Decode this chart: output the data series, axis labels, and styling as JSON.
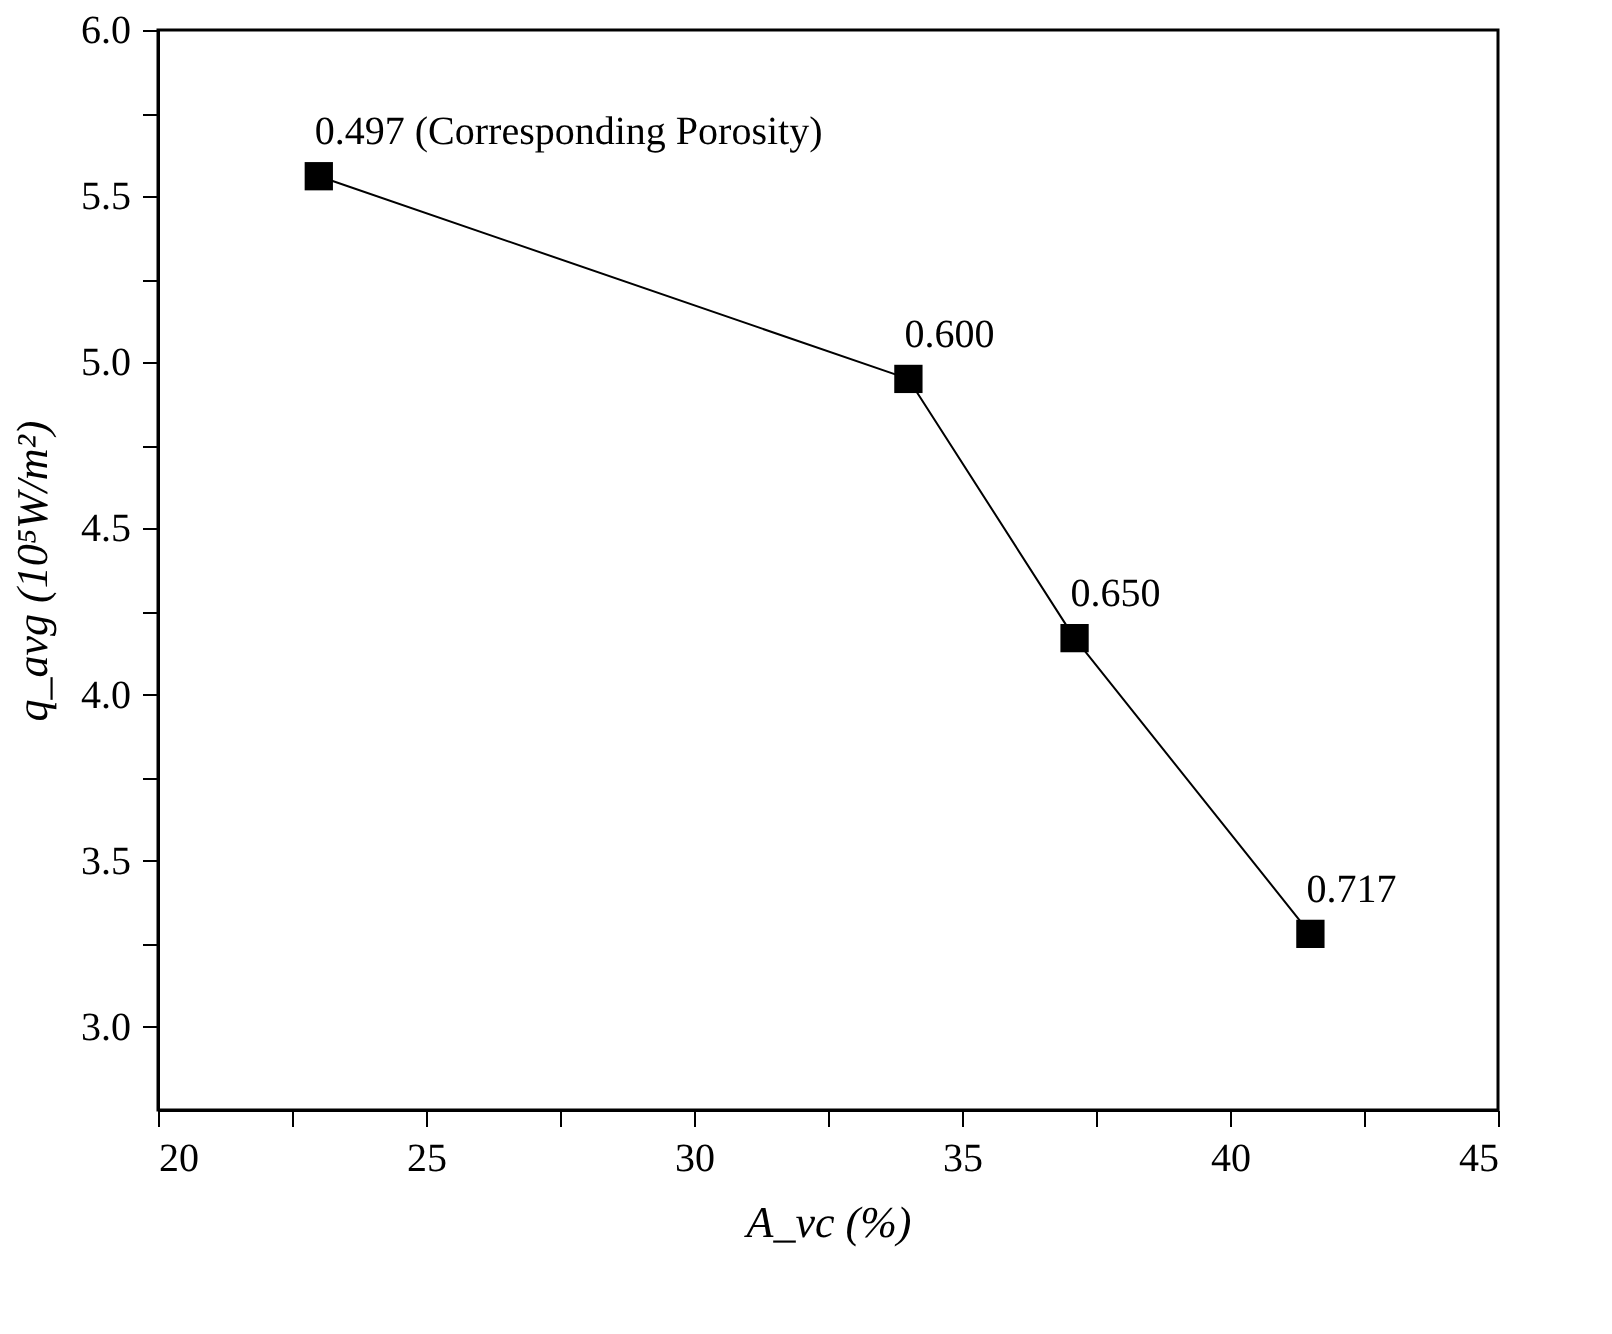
{
  "chart_data": {
    "type": "line",
    "xlabel": "A_vc (%)",
    "ylabel": "q_avg (10⁵W/m²)",
    "x": [
      23.0,
      34.0,
      37.1,
      41.5
    ],
    "series": [
      {
        "color": "#000000",
        "values": [
          5.56,
          4.95,
          4.17,
          3.28
        ]
      }
    ],
    "marker": "square",
    "line_style": "solid",
    "xlim": [
      20,
      45
    ],
    "xticks": [
      20,
      {
        "value": 22.5,
        "label": null
      },
      25,
      {
        "value": 27.5,
        "label": null
      },
      30,
      {
        "value": 32.5,
        "label": null
      },
      35,
      {
        "value": 37.5,
        "label": null
      },
      40,
      {
        "value": 42.5,
        "label": null
      },
      45
    ],
    "ylim": [
      2.75,
      6.0
    ],
    "yticks": [
      {
        "value": 3,
        "label": "3.0"
      },
      {
        "value": 3.25,
        "label": null
      },
      {
        "value": 3.5,
        "label": "3.5"
      },
      {
        "value": 3.75,
        "label": null
      },
      {
        "value": 4,
        "label": "4.0"
      },
      {
        "value": 4.25,
        "label": null
      },
      {
        "value": 4.5,
        "label": "4.5"
      },
      {
        "value": 4.75,
        "label": null
      },
      {
        "value": 5,
        "label": "5.0"
      },
      {
        "value": 5.25,
        "label": null
      },
      {
        "value": 5.5,
        "label": "5.5"
      },
      {
        "value": 5.75,
        "label": null
      },
      {
        "value": 6,
        "label": "6.0"
      }
    ],
    "grid": false,
    "annotations": [
      {
        "text": "0.497 (Corresponding Porosity)",
        "x": 23.0,
        "y": 5.56
      },
      {
        "text": "0.600",
        "x": 34.0,
        "y": 4.95
      },
      {
        "text": "0.650",
        "x": 37.1,
        "y": 4.17
      },
      {
        "text": "0.717",
        "x": 41.5,
        "y": 3.28
      }
    ]
  }
}
